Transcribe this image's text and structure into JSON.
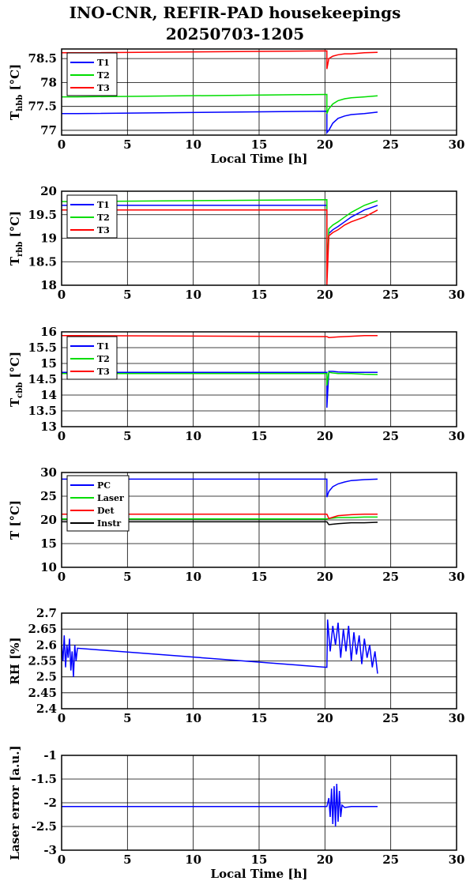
{
  "title_line1": "INO-CNR, REFIR-PAD housekeepings",
  "title_line2": "20250703-1205",
  "chart_data": [
    {
      "type": "line",
      "ylabel": "T_hbb [°C]",
      "xlabel": "Local Time [h]",
      "xlim": [
        0,
        30
      ],
      "ylim": [
        76.9,
        78.7
      ],
      "xticks": [
        0,
        5,
        10,
        15,
        20,
        25,
        30
      ],
      "yticks": [
        77,
        77.5,
        78,
        78.5
      ],
      "ytick_labels": [
        "77",
        "77.5",
        "78",
        "78.5"
      ],
      "grid": true,
      "legend_position": "top-left",
      "series": [
        {
          "name": "T1",
          "color": "#0000ff",
          "x": [
            0,
            1.2,
            20.15,
            20.15,
            20.3,
            20.6,
            21,
            21.5,
            22,
            23,
            24
          ],
          "y": [
            77.35,
            77.35,
            77.4,
            76.95,
            77.0,
            77.15,
            77.25,
            77.3,
            77.33,
            77.35,
            77.38
          ]
        },
        {
          "name": "T2",
          "color": "#00dd00",
          "x": [
            0,
            1.2,
            20.15,
            20.15,
            20.3,
            20.6,
            21,
            21.5,
            22,
            23,
            24
          ],
          "y": [
            77.7,
            77.7,
            77.75,
            77.35,
            77.45,
            77.55,
            77.62,
            77.66,
            77.68,
            77.7,
            77.72
          ]
        },
        {
          "name": "T3",
          "color": "#ff0000",
          "x": [
            0,
            1.2,
            20.15,
            20.15,
            20.3,
            20.6,
            21,
            21.5,
            22,
            23,
            24
          ],
          "y": [
            78.62,
            78.62,
            78.66,
            78.28,
            78.5,
            78.55,
            78.58,
            78.6,
            78.6,
            78.62,
            78.63
          ]
        }
      ]
    },
    {
      "type": "line",
      "ylabel": "T_rbb [°C]",
      "xlabel": "",
      "xlim": [
        0,
        30
      ],
      "ylim": [
        18,
        20
      ],
      "xticks": [
        0,
        5,
        10,
        15,
        20,
        25,
        30
      ],
      "yticks": [
        18,
        18.5,
        19,
        19.5,
        20
      ],
      "ytick_labels": [
        "18",
        "18.5",
        "19",
        "19.5",
        "20"
      ],
      "grid": true,
      "legend_position": "top-left",
      "series": [
        {
          "name": "T1",
          "color": "#0000ff",
          "x": [
            0,
            1.2,
            20.15,
            20.15,
            20.3,
            20.6,
            21,
            21.5,
            22,
            23,
            24
          ],
          "y": [
            19.7,
            19.7,
            19.7,
            18.3,
            19.1,
            19.18,
            19.25,
            19.35,
            19.45,
            19.6,
            19.7
          ]
        },
        {
          "name": "T2",
          "color": "#00dd00",
          "x": [
            0,
            1.2,
            20.15,
            20.15,
            20.3,
            20.6,
            21,
            21.5,
            22,
            23,
            24
          ],
          "y": [
            19.78,
            19.78,
            19.82,
            18.2,
            19.2,
            19.28,
            19.35,
            19.45,
            19.55,
            19.7,
            19.8
          ]
        },
        {
          "name": "T3",
          "color": "#ff0000",
          "x": [
            0,
            1.2,
            20.15,
            20.15,
            20.3,
            20.6,
            21,
            21.5,
            22,
            23,
            24
          ],
          "y": [
            19.6,
            19.6,
            19.6,
            18.0,
            19.05,
            19.12,
            19.18,
            19.28,
            19.35,
            19.45,
            19.6
          ]
        }
      ]
    },
    {
      "type": "line",
      "ylabel": "T_cbb [°C]",
      "xlabel": "",
      "xlim": [
        0,
        30
      ],
      "ylim": [
        13,
        16
      ],
      "xticks": [
        0,
        5,
        10,
        15,
        20,
        25,
        30
      ],
      "yticks": [
        13,
        13.5,
        14,
        14.5,
        15,
        15.5,
        16
      ],
      "ytick_labels": [
        "13",
        "13.5",
        "14",
        "14.5",
        "15",
        "15.5",
        "16"
      ],
      "grid": true,
      "legend_position": "top-left",
      "series": [
        {
          "name": "T1",
          "color": "#0000ff",
          "x": [
            0,
            1.2,
            20.15,
            20.15,
            20.3,
            20.6,
            21,
            22,
            23,
            24
          ],
          "y": [
            14.72,
            14.72,
            14.72,
            13.6,
            14.75,
            14.75,
            14.73,
            14.72,
            14.72,
            14.72
          ]
        },
        {
          "name": "T2",
          "color": "#00dd00",
          "x": [
            0,
            1.2,
            20.15,
            20.15,
            20.3,
            20.6,
            21,
            22,
            23,
            24
          ],
          "y": [
            14.68,
            14.68,
            14.68,
            14.3,
            14.72,
            14.7,
            14.68,
            14.68,
            14.66,
            14.65
          ]
        },
        {
          "name": "T3",
          "color": "#ff0000",
          "x": [
            0,
            1.2,
            20.15,
            20.3,
            21,
            22,
            23,
            24
          ],
          "y": [
            15.88,
            15.88,
            15.85,
            15.82,
            15.84,
            15.86,
            15.88,
            15.88
          ]
        }
      ]
    },
    {
      "type": "line",
      "ylabel": "T [°C]",
      "xlabel": "",
      "xlim": [
        0,
        30
      ],
      "ylim": [
        10,
        30
      ],
      "xticks": [
        0,
        5,
        10,
        15,
        20,
        25,
        30
      ],
      "yticks": [
        10,
        15,
        20,
        25,
        30
      ],
      "ytick_labels": [
        "10",
        "15",
        "20",
        "25",
        "30"
      ],
      "grid": true,
      "legend_position": "top-left",
      "series": [
        {
          "name": "PC",
          "color": "#0000ff",
          "x": [
            0,
            1.2,
            20.15,
            20.15,
            20.3,
            20.6,
            21,
            21.5,
            22,
            23,
            24
          ],
          "y": [
            28.6,
            28.6,
            28.6,
            24.8,
            26.0,
            27.0,
            27.6,
            28.0,
            28.3,
            28.5,
            28.6
          ]
        },
        {
          "name": "Laser",
          "color": "#00dd00",
          "x": [
            0,
            1.2,
            20.15,
            20.3,
            21,
            22,
            23,
            24
          ],
          "y": [
            20.2,
            20.2,
            20.2,
            20.3,
            20.5,
            20.5,
            20.6,
            20.6
          ]
        },
        {
          "name": "Det",
          "color": "#ff0000",
          "x": [
            0,
            1.2,
            20.15,
            20.3,
            21,
            22,
            23,
            24
          ],
          "y": [
            21.2,
            21.2,
            21.2,
            20.3,
            20.9,
            21.1,
            21.2,
            21.2
          ]
        },
        {
          "name": "Instr",
          "color": "#000000",
          "x": [
            0,
            1.2,
            20.15,
            20.3,
            21,
            22,
            23,
            24
          ],
          "y": [
            19.6,
            19.6,
            19.6,
            19.0,
            19.2,
            19.4,
            19.4,
            19.5
          ]
        }
      ]
    },
    {
      "type": "line",
      "ylabel": "RH [%]",
      "xlabel": "",
      "xlim": [
        0,
        30
      ],
      "ylim": [
        2.4,
        2.7
      ],
      "xticks": [
        0,
        5,
        10,
        15,
        20,
        25,
        30
      ],
      "yticks": [
        2.4,
        2.45,
        2.5,
        2.55,
        2.6,
        2.65,
        2.7
      ],
      "ytick_labels": [
        "2.4",
        "2.45",
        "2.5",
        "2.55",
        "2.6",
        "2.65",
        "2.7"
      ],
      "grid": true,
      "legend_position": "none",
      "series": [
        {
          "color": "#0000ff",
          "x": [
            0,
            0.1,
            0.2,
            0.3,
            0.4,
            0.5,
            0.6,
            0.7,
            0.8,
            0.9,
            1.0,
            1.1,
            1.2,
            20.15,
            20.2,
            20.4,
            20.6,
            20.8,
            21.0,
            21.2,
            21.4,
            21.6,
            21.8,
            22.0,
            22.2,
            22.4,
            22.6,
            22.8,
            23.0,
            23.2,
            23.4,
            23.6,
            23.8,
            24.0
          ],
          "y": [
            2.6,
            2.55,
            2.63,
            2.53,
            2.6,
            2.56,
            2.62,
            2.52,
            2.58,
            2.5,
            2.6,
            2.55,
            2.59,
            2.53,
            2.68,
            2.58,
            2.66,
            2.6,
            2.67,
            2.56,
            2.65,
            2.58,
            2.66,
            2.55,
            2.64,
            2.57,
            2.63,
            2.54,
            2.62,
            2.56,
            2.6,
            2.53,
            2.58,
            2.51
          ]
        }
      ]
    },
    {
      "type": "line",
      "ylabel": "Laser error [a.u.]",
      "xlabel": "Local Time [h]",
      "xlim": [
        0,
        30
      ],
      "ylim": [
        -3,
        -1
      ],
      "xticks": [
        0,
        5,
        10,
        15,
        20,
        25,
        30
      ],
      "yticks": [
        -3,
        -2.5,
        -2,
        -1.5,
        -1
      ],
      "ytick_labels": [
        "-3",
        "-2.5",
        "-2",
        "-1.5",
        "-1"
      ],
      "grid": true,
      "legend_position": "none",
      "series": [
        {
          "color": "#0000ff",
          "x": [
            0,
            1.2,
            20.15,
            20.3,
            20.4,
            20.5,
            20.6,
            20.7,
            20.8,
            20.9,
            21.0,
            21.1,
            21.2,
            21.3,
            21.5,
            22,
            23,
            24
          ],
          "y": [
            -2.08,
            -2.08,
            -2.08,
            -1.9,
            -2.3,
            -1.7,
            -2.45,
            -1.65,
            -2.5,
            -1.6,
            -2.4,
            -1.75,
            -2.3,
            -2.05,
            -2.1,
            -2.08,
            -2.08,
            -2.08
          ]
        }
      ]
    }
  ]
}
